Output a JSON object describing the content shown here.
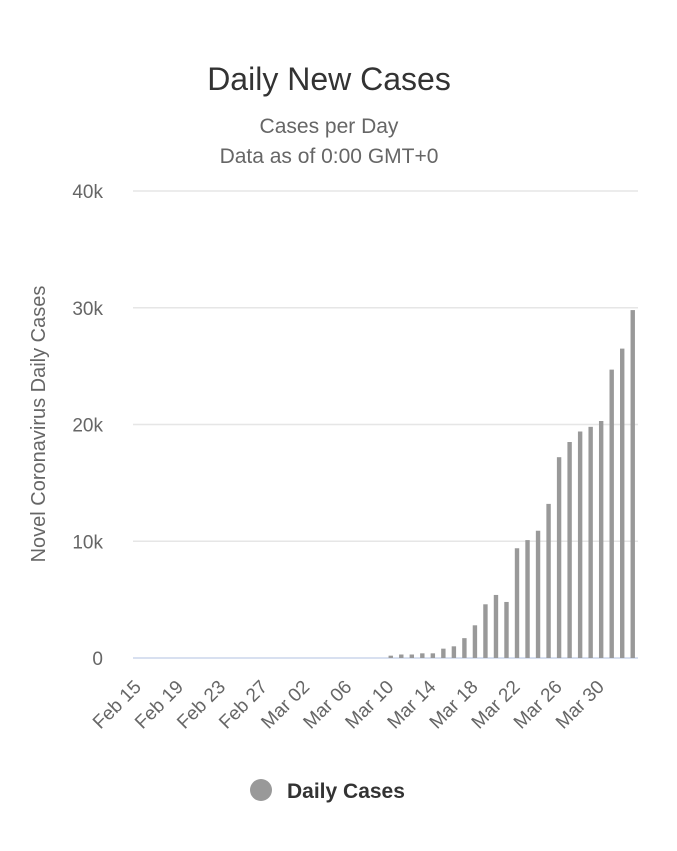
{
  "chart_data": {
    "type": "bar",
    "title": "Daily New Cases",
    "subtitle": [
      "Cases per Day",
      "Data as of 0:00 GMT+0"
    ],
    "y_label": "Novel Coronavirus Daily Cases",
    "categories": [
      "Feb 15",
      null,
      null,
      null,
      "Feb 19",
      null,
      null,
      null,
      "Feb 23",
      null,
      null,
      null,
      "Feb 27",
      null,
      null,
      null,
      "Mar 02",
      null,
      null,
      null,
      "Mar 06",
      null,
      null,
      null,
      "Mar 10",
      null,
      null,
      null,
      "Mar 14",
      null,
      null,
      null,
      "Mar 18",
      null,
      null,
      null,
      "Mar 22",
      null,
      null,
      null,
      "Mar 26",
      null,
      null,
      null,
      "Mar 30",
      null,
      null,
      null
    ],
    "series": [
      {
        "name": "Daily Cases",
        "color": "#999999",
        "values": [
          0,
          0,
          0,
          0,
          0,
          0,
          0,
          0,
          0,
          0,
          0,
          0,
          0,
          0,
          0,
          0,
          0,
          0,
          0,
          0,
          0,
          0,
          0,
          0,
          200,
          300,
          300,
          400,
          400,
          800,
          1000,
          1700,
          2800,
          4600,
          5400,
          4800,
          9400,
          10100,
          10900,
          13200,
          17200,
          18500,
          19400,
          19800,
          20300,
          24700,
          26500,
          29800
        ]
      }
    ],
    "ylim": [
      0,
      40000
    ],
    "yticks": [
      0,
      {
        "value": 10000,
        "label": "10k"
      },
      {
        "value": 20000,
        "label": "20k"
      },
      {
        "value": 30000,
        "label": "30k"
      },
      {
        "value": 40000,
        "label": "40k"
      }
    ],
    "grid": true,
    "legend": "bottom"
  }
}
